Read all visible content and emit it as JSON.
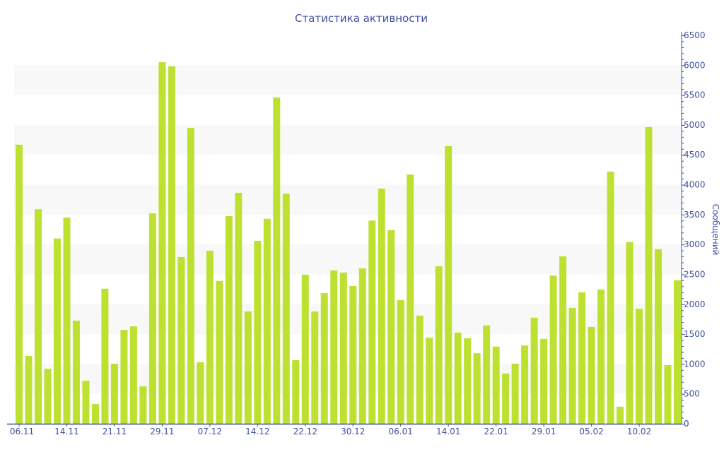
{
  "chart_data": {
    "type": "bar",
    "title": "Статистика активности",
    "xlabel": "",
    "ylabel": "Сообщений",
    "ylim": [
      0,
      6500
    ],
    "y_ticks": [
      0,
      500,
      1000,
      1500,
      2000,
      2500,
      3000,
      3500,
      4000,
      4500,
      5000,
      5500,
      6000,
      6500
    ],
    "y_axis_side": "right",
    "grid": "alternating horizontal bands",
    "bar_color": "#bde130",
    "axis_color": "#3f51a0",
    "x_ticks": [
      {
        "label": "06.11",
        "bar_index": 0
      },
      {
        "label": "14.11",
        "bar_index": 5
      },
      {
        "label": "21.11",
        "bar_index": 10
      },
      {
        "label": "29.11",
        "bar_index": 15
      },
      {
        "label": "07.12",
        "bar_index": 20
      },
      {
        "label": "14.12",
        "bar_index": 25
      },
      {
        "label": "22.12",
        "bar_index": 30
      },
      {
        "label": "30.12",
        "bar_index": 35
      },
      {
        "label": "06.01",
        "bar_index": 40
      },
      {
        "label": "14.01",
        "bar_index": 45
      },
      {
        "label": "22.01",
        "bar_index": 50
      },
      {
        "label": "29.01",
        "bar_index": 55
      },
      {
        "label": "05.02",
        "bar_index": 60
      },
      {
        "label": "10.02",
        "bar_index": 65
      }
    ],
    "values": [
      4670,
      1135,
      3590,
      920,
      3100,
      3450,
      1725,
      720,
      330,
      2260,
      1005,
      1570,
      1630,
      625,
      3520,
      6050,
      5980,
      2790,
      4950,
      1030,
      2895,
      2390,
      3475,
      3865,
      1880,
      3060,
      3430,
      5460,
      3850,
      1065,
      2495,
      1880,
      2185,
      2565,
      2530,
      2305,
      2600,
      3400,
      3935,
      3240,
      2070,
      4170,
      1810,
      1440,
      2635,
      4645,
      1525,
      1430,
      1180,
      1645,
      1290,
      840,
      1005,
      1310,
      1775,
      1420,
      2480,
      2800,
      1940,
      2200,
      1620,
      2245,
      4220,
      285,
      3040,
      1925,
      4965,
      2920,
      980,
      2400
    ]
  }
}
